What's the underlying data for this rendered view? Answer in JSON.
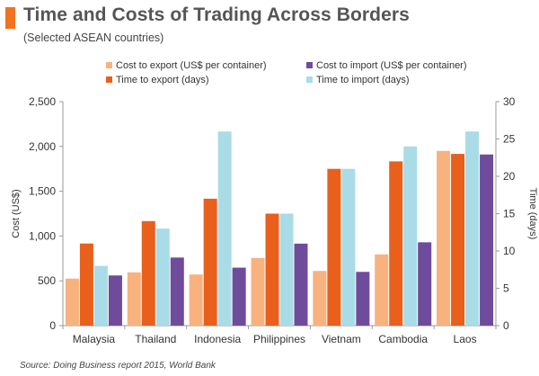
{
  "header": {
    "title": "Time and Costs of Trading Across Borders",
    "subtitle": "(Selected ASEAN countries)",
    "accent_color": "#F07320"
  },
  "footer": {
    "source": "Source: Doing Business report 2015, World Bank"
  },
  "chart_data": {
    "type": "bar",
    "categories": [
      "Malaysia",
      "Thailand",
      "Indonesia",
      "Philippines",
      "Vietnam",
      "Cambodia",
      "Laos"
    ],
    "series": [
      {
        "name": "Cost to export (US$ per container)",
        "axis": "left",
        "color": "#F8B27E",
        "values": [
          525,
          595,
          571,
          755,
          610,
          795,
          1950
        ]
      },
      {
        "name": "Time to export (days)",
        "axis": "right",
        "color": "#E8601C",
        "values": [
          11,
          14,
          17,
          15,
          21,
          22,
          23
        ]
      },
      {
        "name": "Time to import (days)",
        "axis": "right",
        "color": "#A9DCE7",
        "values": [
          8,
          13,
          26,
          15,
          21,
          24,
          26
        ]
      },
      {
        "name": "Cost to import (US$ per container)",
        "axis": "left",
        "color": "#6F4C9B",
        "values": [
          560,
          760,
          647,
          915,
          600,
          930,
          1910
        ]
      }
    ],
    "legend": {
      "position": "top",
      "order": [
        "Cost to export (US$ per container)",
        "Cost to import (US$ per container)",
        "Time to export (days)",
        "Time to import (days)"
      ]
    },
    "ylabel": "Cost (US$)",
    "ylim": [
      0,
      2500
    ],
    "yticks": [
      "0",
      "500",
      "1,000",
      "1,500",
      "2,000",
      "2,500"
    ],
    "y2label": "Time (days)",
    "y2lim": [
      0,
      30
    ],
    "y2ticks": [
      "0",
      "5",
      "10",
      "15",
      "20",
      "25",
      "30"
    ],
    "grid": false
  }
}
